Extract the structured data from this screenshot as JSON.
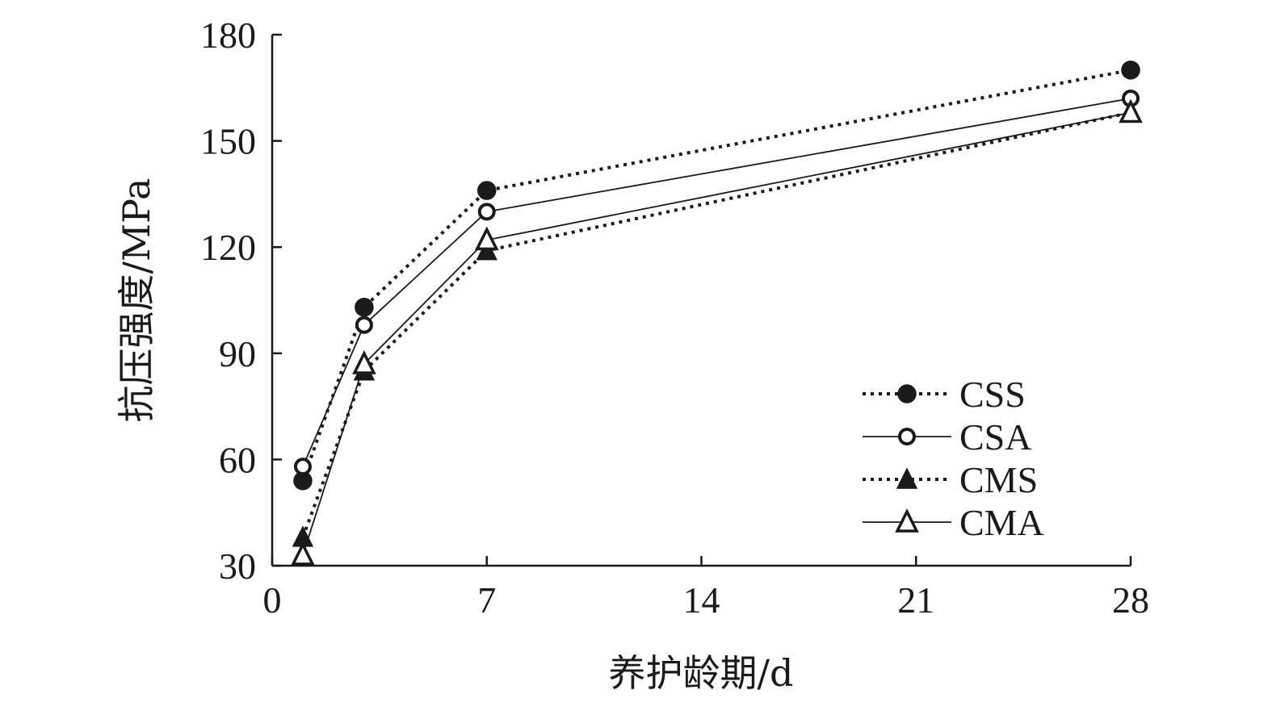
{
  "chart_data": {
    "type": "line",
    "xlabel": "养护龄期/d",
    "ylabel": "抗压强度/MPa",
    "xlim": [
      0,
      28
    ],
    "ylim": [
      30,
      180
    ],
    "xticks": [
      0,
      7,
      14,
      21,
      28
    ],
    "yticks": [
      30,
      60,
      90,
      120,
      150,
      180
    ],
    "grid": false,
    "legend_position": "bottom-right",
    "series": [
      {
        "name": "CSS",
        "x": [
          1,
          3,
          7,
          28
        ],
        "y": [
          54,
          103,
          136,
          170
        ],
        "line": "dotted",
        "marker": "filled-circle"
      },
      {
        "name": "CSA",
        "x": [
          1,
          3,
          7,
          28
        ],
        "y": [
          58,
          98,
          130,
          162
        ],
        "line": "solid",
        "marker": "open-circle"
      },
      {
        "name": "CMS",
        "x": [
          1,
          3,
          7,
          28
        ],
        "y": [
          38,
          85,
          119,
          158
        ],
        "line": "dotted",
        "marker": "filled-triangle"
      },
      {
        "name": "CMA",
        "x": [
          1,
          3,
          7,
          28
        ],
        "y": [
          33,
          87,
          122,
          158
        ],
        "line": "solid",
        "marker": "open-triangle"
      }
    ]
  }
}
